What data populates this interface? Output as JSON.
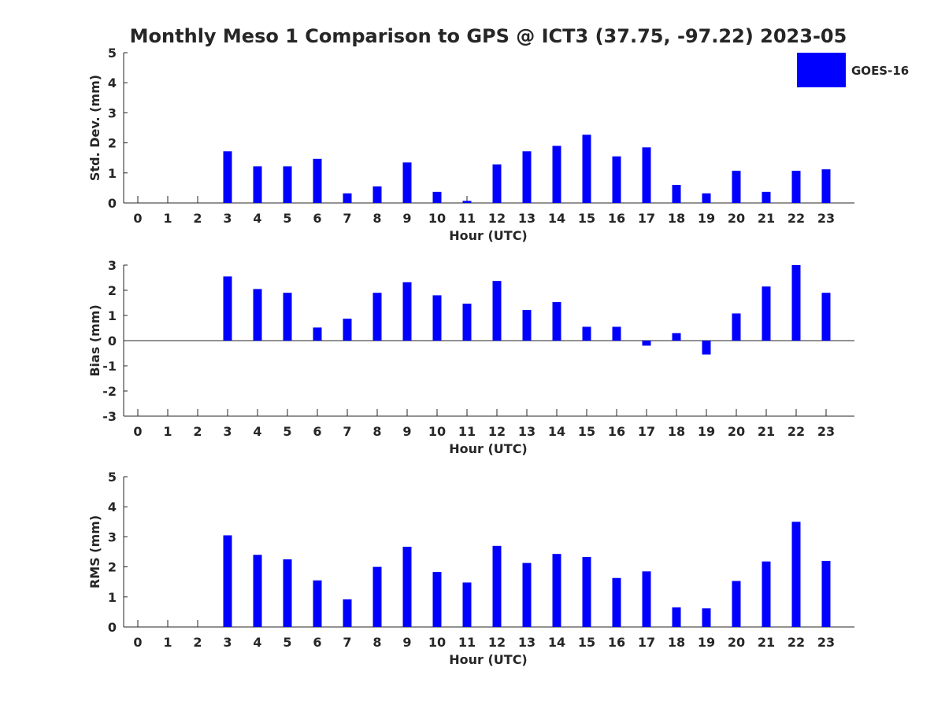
{
  "figure": {
    "title": "Monthly Meso 1 Comparison to GPS @ ICT3 (37.75, -97.22) 2023-05",
    "legend": {
      "label": "GOES-16",
      "placement": "top-right"
    },
    "bar_color": "#0000FF"
  },
  "chart_data": [
    {
      "type": "bar",
      "categories": [
        "0",
        "1",
        "2",
        "3",
        "4",
        "5",
        "6",
        "7",
        "8",
        "9",
        "10",
        "11",
        "12",
        "13",
        "14",
        "15",
        "16",
        "17",
        "18",
        "19",
        "20",
        "21",
        "22",
        "23"
      ],
      "series": [
        {
          "name": "GOES-16",
          "values": [
            null,
            null,
            null,
            1.72,
            1.22,
            1.22,
            1.47,
            0.32,
            0.55,
            1.35,
            0.37,
            0.07,
            1.28,
            1.72,
            1.9,
            2.27,
            1.55,
            1.85,
            0.6,
            0.32,
            1.07,
            0.37,
            1.07,
            1.12
          ]
        }
      ],
      "xlabel": "Hour (UTC)",
      "ylabel": "Std. Dev. (mm)",
      "ylim": [
        0,
        5
      ],
      "yticks": [
        "0",
        "1",
        "2",
        "3",
        "4",
        "5"
      ]
    },
    {
      "type": "bar",
      "categories": [
        "0",
        "1",
        "2",
        "3",
        "4",
        "5",
        "6",
        "7",
        "8",
        "9",
        "10",
        "11",
        "12",
        "13",
        "14",
        "15",
        "16",
        "17",
        "18",
        "19",
        "20",
        "21",
        "22",
        "23"
      ],
      "series": [
        {
          "name": "GOES-16",
          "values": [
            null,
            null,
            null,
            2.55,
            2.05,
            1.9,
            0.52,
            0.87,
            1.9,
            2.32,
            1.8,
            1.47,
            2.37,
            1.22,
            1.53,
            0.55,
            0.55,
            -0.2,
            0.3,
            -0.55,
            1.08,
            2.15,
            3.0,
            1.9
          ]
        }
      ],
      "xlabel": "Hour (UTC)",
      "ylabel": "Bias (mm)",
      "ylim": [
        -3,
        3
      ],
      "yticks": [
        "-3",
        "-2",
        "-1",
        "0",
        "1",
        "2",
        "3"
      ]
    },
    {
      "type": "bar",
      "categories": [
        "0",
        "1",
        "2",
        "3",
        "4",
        "5",
        "6",
        "7",
        "8",
        "9",
        "10",
        "11",
        "12",
        "13",
        "14",
        "15",
        "16",
        "17",
        "18",
        "19",
        "20",
        "21",
        "22",
        "23"
      ],
      "series": [
        {
          "name": "GOES-16",
          "values": [
            null,
            null,
            null,
            3.05,
            2.4,
            2.25,
            1.55,
            0.92,
            2.0,
            2.67,
            1.83,
            1.48,
            2.7,
            2.13,
            2.43,
            2.33,
            1.63,
            1.85,
            0.65,
            0.62,
            1.53,
            2.18,
            3.5,
            2.2
          ]
        }
      ],
      "xlabel": "Hour (UTC)",
      "ylabel": "RMS (mm)",
      "ylim": [
        0,
        5
      ],
      "yticks": [
        "0",
        "1",
        "2",
        "3",
        "4",
        "5"
      ]
    }
  ]
}
